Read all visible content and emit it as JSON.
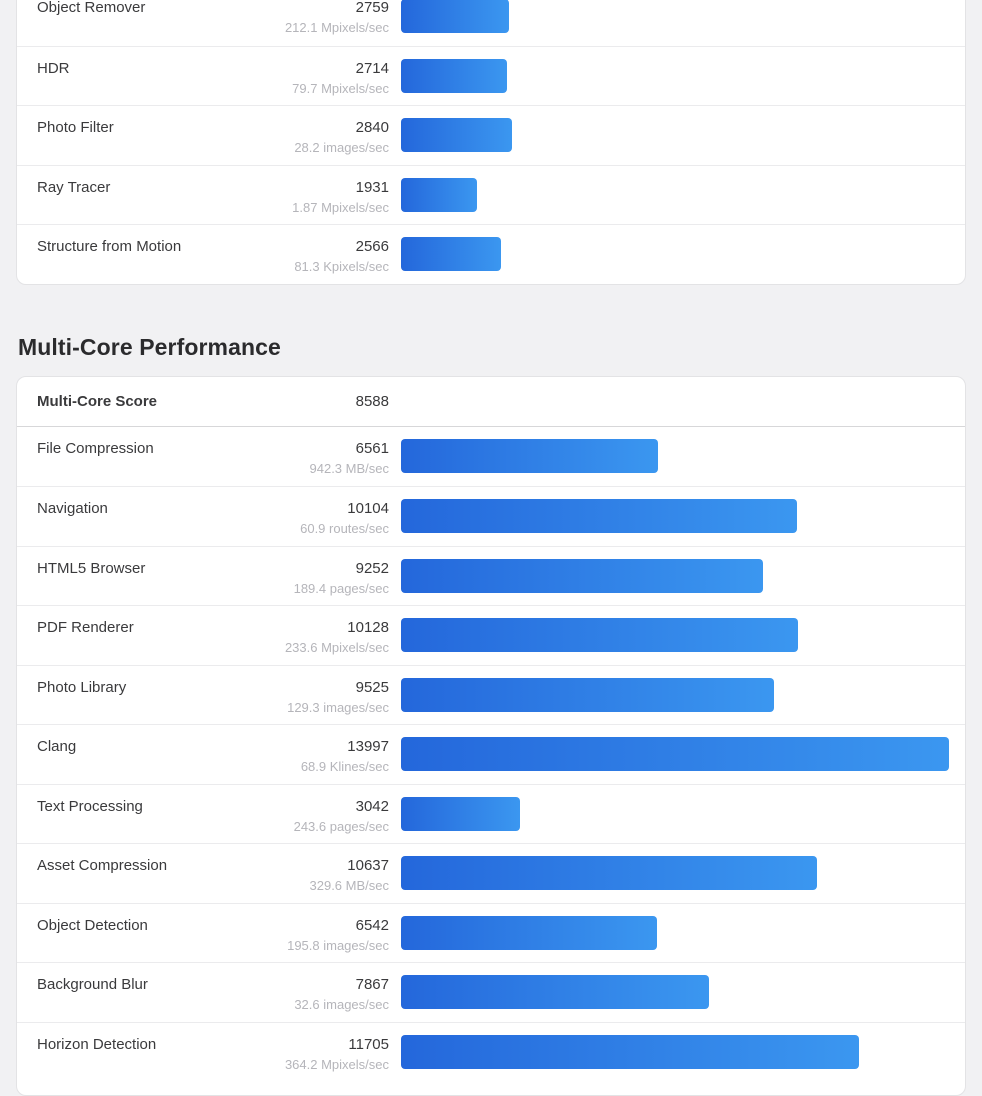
{
  "theme": {
    "page_background": "#f1f1f3",
    "card_background": "#ffffff",
    "card_border": "#e3e3e5",
    "bar_gradient_start": "#2467db",
    "bar_gradient_end": "#3b97f0",
    "rate_text_color": "#b5b5ba"
  },
  "chart_data": [
    {
      "type": "bar",
      "orientation": "horizontal",
      "title": "",
      "note": "top table partially cut off at top of viewport; no heading visible",
      "categories": [
        "Object Remover",
        "HDR",
        "Photo Filter",
        "Ray Tracer",
        "Structure from Motion"
      ],
      "values": [
        2759,
        2714,
        2840,
        1931,
        2566
      ],
      "rate_labels": [
        "212.1 Mpixels/sec",
        "79.7 Mpixels/sec",
        "28.2 images/sec",
        "1.87 Mpixels/sec",
        "81.3 Kpixels/sec"
      ],
      "xlim": [
        0,
        13997
      ],
      "grid": false,
      "legend": false
    },
    {
      "type": "bar",
      "orientation": "horizontal",
      "title": "Multi-Core Performance",
      "summary": {
        "label": "Multi-Core Score",
        "value": "8588"
      },
      "categories": [
        "File Compression",
        "Navigation",
        "HTML5 Browser",
        "PDF Renderer",
        "Photo Library",
        "Clang",
        "Text Processing",
        "Asset Compression",
        "Object Detection",
        "Background Blur",
        "Horizon Detection"
      ],
      "values": [
        6561,
        10104,
        9252,
        10128,
        9525,
        13997,
        3042,
        10637,
        6542,
        7867,
        11705
      ],
      "rate_labels": [
        "942.3 MB/sec",
        "60.9 routes/sec",
        "189.4 pages/sec",
        "233.6 Mpixels/sec",
        "129.3 images/sec",
        "68.9 Klines/sec",
        "243.6 pages/sec",
        "329.6 MB/sec",
        "195.8 images/sec",
        "32.6 images/sec",
        "364.2 Mpixels/sec"
      ],
      "xlim": [
        0,
        13997
      ],
      "grid": false,
      "legend": false
    }
  ]
}
